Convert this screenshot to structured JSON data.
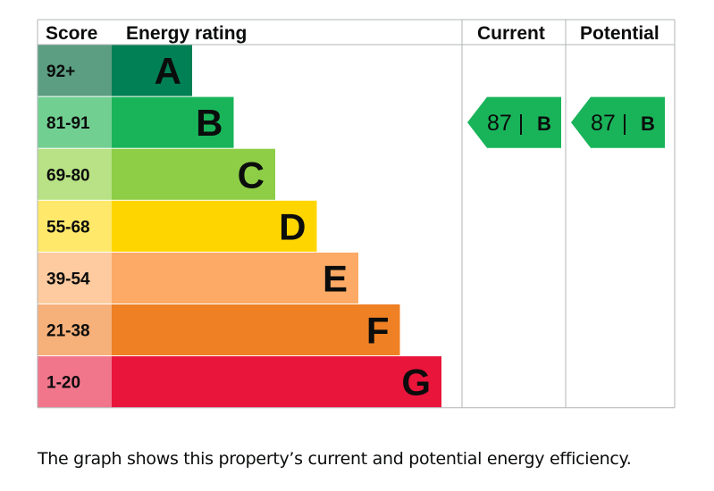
{
  "chart_data": {
    "type": "bar",
    "headers": {
      "score": "Score",
      "rating": "Energy rating",
      "current": "Current",
      "potential": "Potential"
    },
    "bands": [
      {
        "letter": "A",
        "range": "92+",
        "color": "#008054",
        "score_color": "#5c9e82"
      },
      {
        "letter": "B",
        "range": "81-91",
        "color": "#19b459",
        "score_color": "#72cf92"
      },
      {
        "letter": "C",
        "range": "69-80",
        "color": "#8dce46",
        "score_color": "#b8e285"
      },
      {
        "letter": "D",
        "range": "55-68",
        "color": "#ffd500",
        "score_color": "#ffe86a"
      },
      {
        "letter": "E",
        "range": "39-54",
        "color": "#fcaa65",
        "score_color": "#fdcb9f"
      },
      {
        "letter": "F",
        "range": "21-38",
        "color": "#ef8023",
        "score_color": "#f6b07a"
      },
      {
        "letter": "G",
        "range": "1-20",
        "color": "#e9153b",
        "score_color": "#f1768c"
      }
    ],
    "current": {
      "score": 87,
      "letter": "B",
      "label": "87 |",
      "color": "#19b459"
    },
    "potential": {
      "score": 87,
      "letter": "B",
      "label": "87 |",
      "color": "#19b459"
    }
  },
  "caption": "The graph shows this property’s current and potential energy efficiency."
}
